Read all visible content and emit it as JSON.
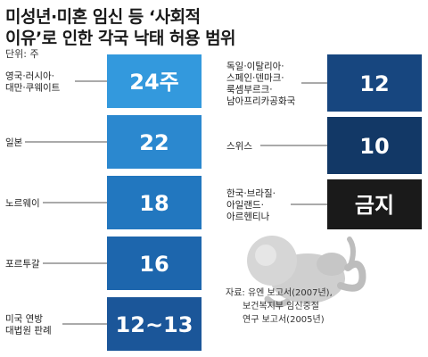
{
  "title_lines": [
    "미성년·미혼 임신 등 ‘사회적",
    "이유’로 인한 각국 낙태 허용 범위"
  ],
  "unit": "단위: 주",
  "source_lines": [
    "자료: 유엔 보고서(2007년),",
    "보건복지부 임신중절",
    "연구 보고서(2005년)"
  ],
  "chart_data": {
    "type": "table",
    "title": "미성년·미혼 임신 등 ‘사회적 이유’로 인한 각국 낙태 허용 범위",
    "unit": "주",
    "left_column": [
      {
        "label_lines": [
          "영국·러시아·",
          "대만·쿠웨이트"
        ],
        "value": "24주",
        "color": "#3399dd"
      },
      {
        "label_lines": [
          "일본"
        ],
        "value": "22",
        "color": "#2b88cf"
      },
      {
        "label_lines": [
          "노르웨이"
        ],
        "value": "18",
        "color": "#2277bf"
      },
      {
        "label_lines": [
          "포르투갈"
        ],
        "value": "16",
        "color": "#1d66ad"
      },
      {
        "label_lines": [
          "미국 연방",
          "대법원 판례"
        ],
        "value": "12~13",
        "color": "#1b5699"
      }
    ],
    "right_column": [
      {
        "label_lines": [
          "독일·이탈리아·",
          "스페인·덴마크·",
          "룩셈부르크·",
          "남아프리카공화국"
        ],
        "value": "12",
        "color": "#17467f"
      },
      {
        "label_lines": [
          "스위스"
        ],
        "value": "10",
        "color": "#123866"
      },
      {
        "label_lines": [
          "한국·브라질·",
          "아일랜드·",
          "아르헨티나"
        ],
        "value": "금지",
        "color": "#1a1a1a"
      }
    ]
  }
}
